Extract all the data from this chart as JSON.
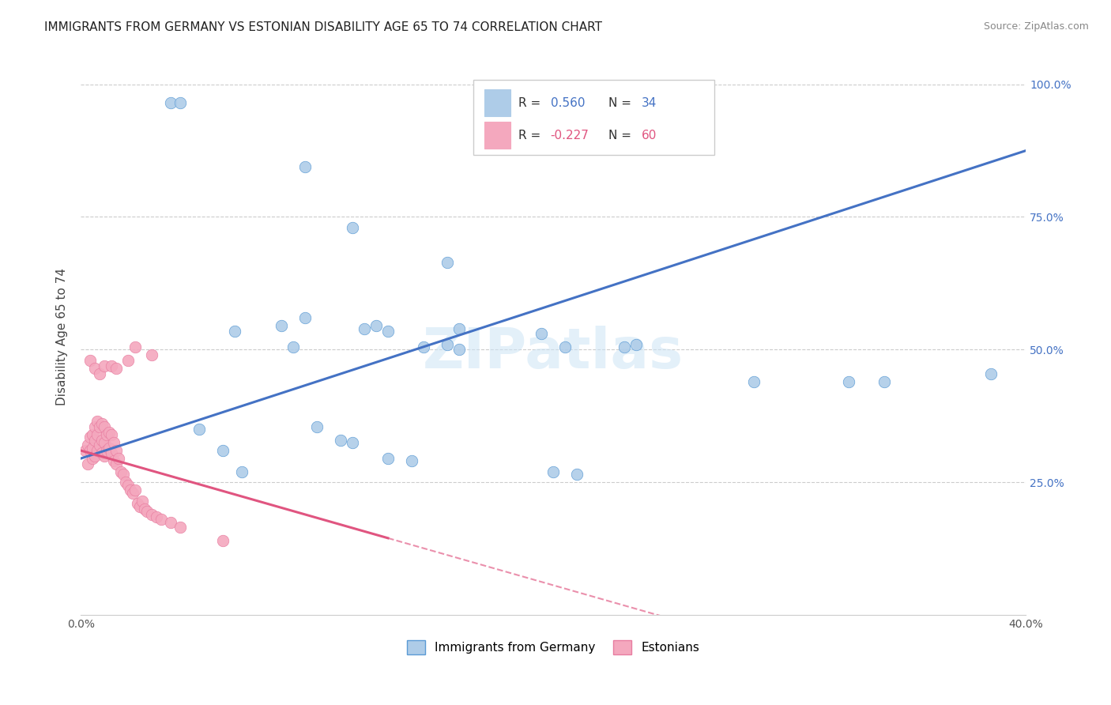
{
  "title": "IMMIGRANTS FROM GERMANY VS ESTONIAN DISABILITY AGE 65 TO 74 CORRELATION CHART",
  "source": "Source: ZipAtlas.com",
  "ylabel": "Disability Age 65 to 74",
  "xlim": [
    0.0,
    0.4
  ],
  "ylim": [
    0.0,
    1.05
  ],
  "blue_scatter_x": [
    0.038,
    0.042,
    0.095,
    0.115,
    0.155,
    0.16,
    0.065,
    0.085,
    0.09,
    0.095,
    0.12,
    0.125,
    0.13,
    0.145,
    0.155,
    0.16,
    0.195,
    0.205,
    0.23,
    0.235,
    0.285,
    0.34,
    0.385,
    0.05,
    0.06,
    0.068,
    0.1,
    0.11,
    0.115,
    0.13,
    0.14,
    0.2,
    0.21,
    0.325
  ],
  "blue_scatter_y": [
    0.965,
    0.965,
    0.845,
    0.73,
    0.665,
    0.54,
    0.535,
    0.545,
    0.505,
    0.56,
    0.54,
    0.545,
    0.535,
    0.505,
    0.51,
    0.5,
    0.53,
    0.505,
    0.505,
    0.51,
    0.44,
    0.44,
    0.455,
    0.35,
    0.31,
    0.27,
    0.355,
    0.33,
    0.325,
    0.295,
    0.29,
    0.27,
    0.265,
    0.44
  ],
  "pink_scatter_x": [
    0.002,
    0.003,
    0.003,
    0.004,
    0.004,
    0.005,
    0.005,
    0.005,
    0.006,
    0.006,
    0.006,
    0.007,
    0.007,
    0.007,
    0.008,
    0.008,
    0.009,
    0.009,
    0.009,
    0.01,
    0.01,
    0.01,
    0.011,
    0.011,
    0.012,
    0.012,
    0.013,
    0.013,
    0.014,
    0.014,
    0.015,
    0.015,
    0.016,
    0.017,
    0.018,
    0.019,
    0.02,
    0.021,
    0.022,
    0.023,
    0.024,
    0.025,
    0.026,
    0.027,
    0.028,
    0.03,
    0.032,
    0.034,
    0.038,
    0.042,
    0.004,
    0.006,
    0.008,
    0.01,
    0.013,
    0.015,
    0.02,
    0.023,
    0.03,
    0.06
  ],
  "pink_scatter_y": [
    0.31,
    0.32,
    0.285,
    0.335,
    0.31,
    0.34,
    0.315,
    0.295,
    0.355,
    0.33,
    0.3,
    0.365,
    0.34,
    0.31,
    0.355,
    0.32,
    0.36,
    0.33,
    0.305,
    0.355,
    0.325,
    0.3,
    0.34,
    0.31,
    0.345,
    0.315,
    0.34,
    0.305,
    0.325,
    0.29,
    0.31,
    0.285,
    0.295,
    0.27,
    0.265,
    0.25,
    0.245,
    0.235,
    0.23,
    0.235,
    0.21,
    0.205,
    0.215,
    0.2,
    0.195,
    0.19,
    0.185,
    0.18,
    0.175,
    0.165,
    0.48,
    0.465,
    0.455,
    0.47,
    0.47,
    0.465,
    0.48,
    0.505,
    0.49,
    0.14
  ],
  "blue_line_x0": 0.0,
  "blue_line_y0": 0.295,
  "blue_line_x1": 0.4,
  "blue_line_y1": 0.875,
  "pink_line_x0": 0.0,
  "pink_line_y0": 0.31,
  "pink_line_x1": 0.13,
  "pink_line_y1": 0.145,
  "blue_R": 0.56,
  "blue_N": 34,
  "pink_R": -0.227,
  "pink_N": 60,
  "blue_color": "#aecce8",
  "blue_edge_color": "#5b9bd5",
  "blue_line_color": "#4472c4",
  "pink_color": "#f4a8be",
  "pink_edge_color": "#e87da0",
  "pink_line_color": "#e05580",
  "grid_color": "#cccccc",
  "right_tick_color": "#4472c4",
  "background_color": "#ffffff",
  "title_fontsize": 11,
  "source_fontsize": 9,
  "tick_fontsize": 10,
  "legend_label_blue": "Immigrants from Germany",
  "legend_label_pink": "Estonians"
}
